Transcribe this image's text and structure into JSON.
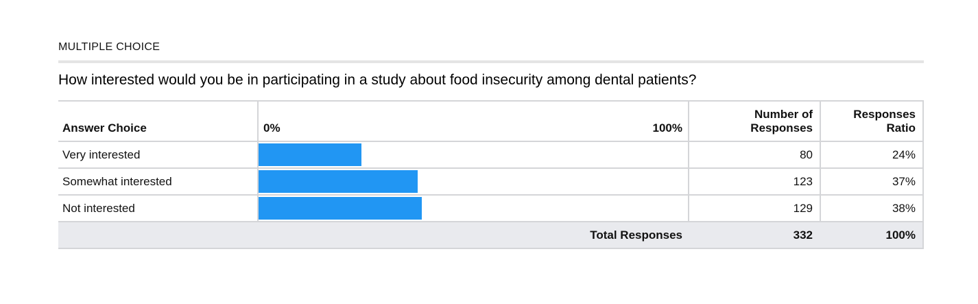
{
  "section_label": "MULTIPLE CHOICE",
  "question": "How interested would you be in participating in a study about food insecurity among dental patients?",
  "table": {
    "columns": {
      "answer": "Answer Choice",
      "scale_start": "0%",
      "scale_end": "100%",
      "responses": "Number of\nResponses",
      "ratio": "Responses\nRatio"
    },
    "rows": [
      {
        "label": "Very interested",
        "responses": "80",
        "ratio": "24%",
        "ratio_value": 24
      },
      {
        "label": "Somewhat interested",
        "responses": "123",
        "ratio": "37%",
        "ratio_value": 37
      },
      {
        "label": "Not interested",
        "responses": "129",
        "ratio": "38%",
        "ratio_value": 38
      }
    ],
    "total": {
      "label": "Total Responses",
      "responses": "332",
      "ratio": "100%"
    }
  },
  "colors": {
    "bar": "#2196f3",
    "total_row_bg": "#e9eaee",
    "table_border": "#d4d5d8",
    "divider": "#e4e4e4"
  },
  "chart_data": {
    "type": "bar",
    "orientation": "horizontal",
    "title": "How interested would you be in participating in a study about food insecurity among dental patients?",
    "categories": [
      "Very interested",
      "Somewhat interested",
      "Not interested"
    ],
    "series": [
      {
        "name": "Responses Ratio (%)",
        "values": [
          24,
          37,
          38
        ]
      },
      {
        "name": "Number of Responses",
        "values": [
          80,
          123,
          129
        ]
      }
    ],
    "total_responses": 332,
    "total_ratio": "100%",
    "xlim": [
      0,
      100
    ],
    "x_ticks": [
      "0%",
      "100%"
    ],
    "bar_color": "#2196f3",
    "grid": false,
    "legend": "none"
  }
}
